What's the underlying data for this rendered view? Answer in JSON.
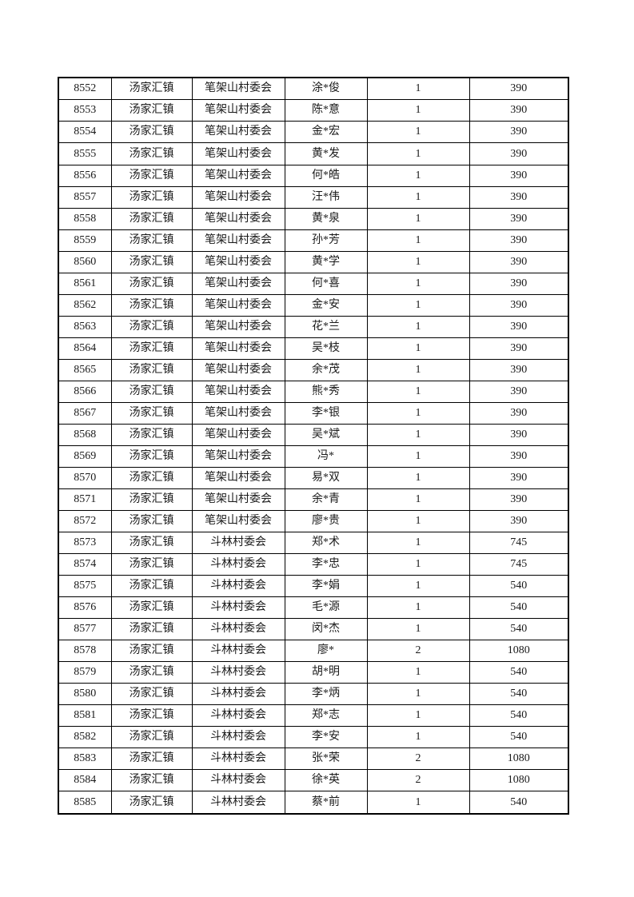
{
  "document": {
    "page_background": "#ffffff",
    "table_border_color": "#000000",
    "text_color": "#1a1a1a"
  },
  "table": {
    "columns": [
      {
        "name": "serial-number"
      },
      {
        "name": "town-name"
      },
      {
        "name": "village-committee"
      },
      {
        "name": "person-name"
      },
      {
        "name": "person-count"
      },
      {
        "name": "amount"
      }
    ],
    "rows": [
      [
        "8552",
        "汤家汇镇",
        "笔架山村委会",
        "涂*俊",
        "1",
        "390"
      ],
      [
        "8553",
        "汤家汇镇",
        "笔架山村委会",
        "陈*意",
        "1",
        "390"
      ],
      [
        "8554",
        "汤家汇镇",
        "笔架山村委会",
        "金*宏",
        "1",
        "390"
      ],
      [
        "8555",
        "汤家汇镇",
        "笔架山村委会",
        "黄*发",
        "1",
        "390"
      ],
      [
        "8556",
        "汤家汇镇",
        "笔架山村委会",
        "何*皓",
        "1",
        "390"
      ],
      [
        "8557",
        "汤家汇镇",
        "笔架山村委会",
        "汪*伟",
        "1",
        "390"
      ],
      [
        "8558",
        "汤家汇镇",
        "笔架山村委会",
        "黄*泉",
        "1",
        "390"
      ],
      [
        "8559",
        "汤家汇镇",
        "笔架山村委会",
        "孙*芳",
        "1",
        "390"
      ],
      [
        "8560",
        "汤家汇镇",
        "笔架山村委会",
        "黄*学",
        "1",
        "390"
      ],
      [
        "8561",
        "汤家汇镇",
        "笔架山村委会",
        "何*喜",
        "1",
        "390"
      ],
      [
        "8562",
        "汤家汇镇",
        "笔架山村委会",
        "金*安",
        "1",
        "390"
      ],
      [
        "8563",
        "汤家汇镇",
        "笔架山村委会",
        "花*兰",
        "1",
        "390"
      ],
      [
        "8564",
        "汤家汇镇",
        "笔架山村委会",
        "吴*枝",
        "1",
        "390"
      ],
      [
        "8565",
        "汤家汇镇",
        "笔架山村委会",
        "余*茂",
        "1",
        "390"
      ],
      [
        "8566",
        "汤家汇镇",
        "笔架山村委会",
        "熊*秀",
        "1",
        "390"
      ],
      [
        "8567",
        "汤家汇镇",
        "笔架山村委会",
        "李*银",
        "1",
        "390"
      ],
      [
        "8568",
        "汤家汇镇",
        "笔架山村委会",
        "吴*斌",
        "1",
        "390"
      ],
      [
        "8569",
        "汤家汇镇",
        "笔架山村委会",
        "冯*",
        "1",
        "390"
      ],
      [
        "8570",
        "汤家汇镇",
        "笔架山村委会",
        "易*双",
        "1",
        "390"
      ],
      [
        "8571",
        "汤家汇镇",
        "笔架山村委会",
        "余*青",
        "1",
        "390"
      ],
      [
        "8572",
        "汤家汇镇",
        "笔架山村委会",
        "廖*贵",
        "1",
        "390"
      ],
      [
        "8573",
        "汤家汇镇",
        "斗林村委会",
        "郑*术",
        "1",
        "745"
      ],
      [
        "8574",
        "汤家汇镇",
        "斗林村委会",
        "李*忠",
        "1",
        "745"
      ],
      [
        "8575",
        "汤家汇镇",
        "斗林村委会",
        "李*娟",
        "1",
        "540"
      ],
      [
        "8576",
        "汤家汇镇",
        "斗林村委会",
        "毛*源",
        "1",
        "540"
      ],
      [
        "8577",
        "汤家汇镇",
        "斗林村委会",
        "闵*杰",
        "1",
        "540"
      ],
      [
        "8578",
        "汤家汇镇",
        "斗林村委会",
        "廖*",
        "2",
        "1080"
      ],
      [
        "8579",
        "汤家汇镇",
        "斗林村委会",
        "胡*明",
        "1",
        "540"
      ],
      [
        "8580",
        "汤家汇镇",
        "斗林村委会",
        "李*炳",
        "1",
        "540"
      ],
      [
        "8581",
        "汤家汇镇",
        "斗林村委会",
        "郑*志",
        "1",
        "540"
      ],
      [
        "8582",
        "汤家汇镇",
        "斗林村委会",
        "李*安",
        "1",
        "540"
      ],
      [
        "8583",
        "汤家汇镇",
        "斗林村委会",
        "张*荣",
        "2",
        "1080"
      ],
      [
        "8584",
        "汤家汇镇",
        "斗林村委会",
        "徐*英",
        "2",
        "1080"
      ],
      [
        "8585",
        "汤家汇镇",
        "斗林村委会",
        "蔡*前",
        "1",
        "540"
      ]
    ]
  }
}
